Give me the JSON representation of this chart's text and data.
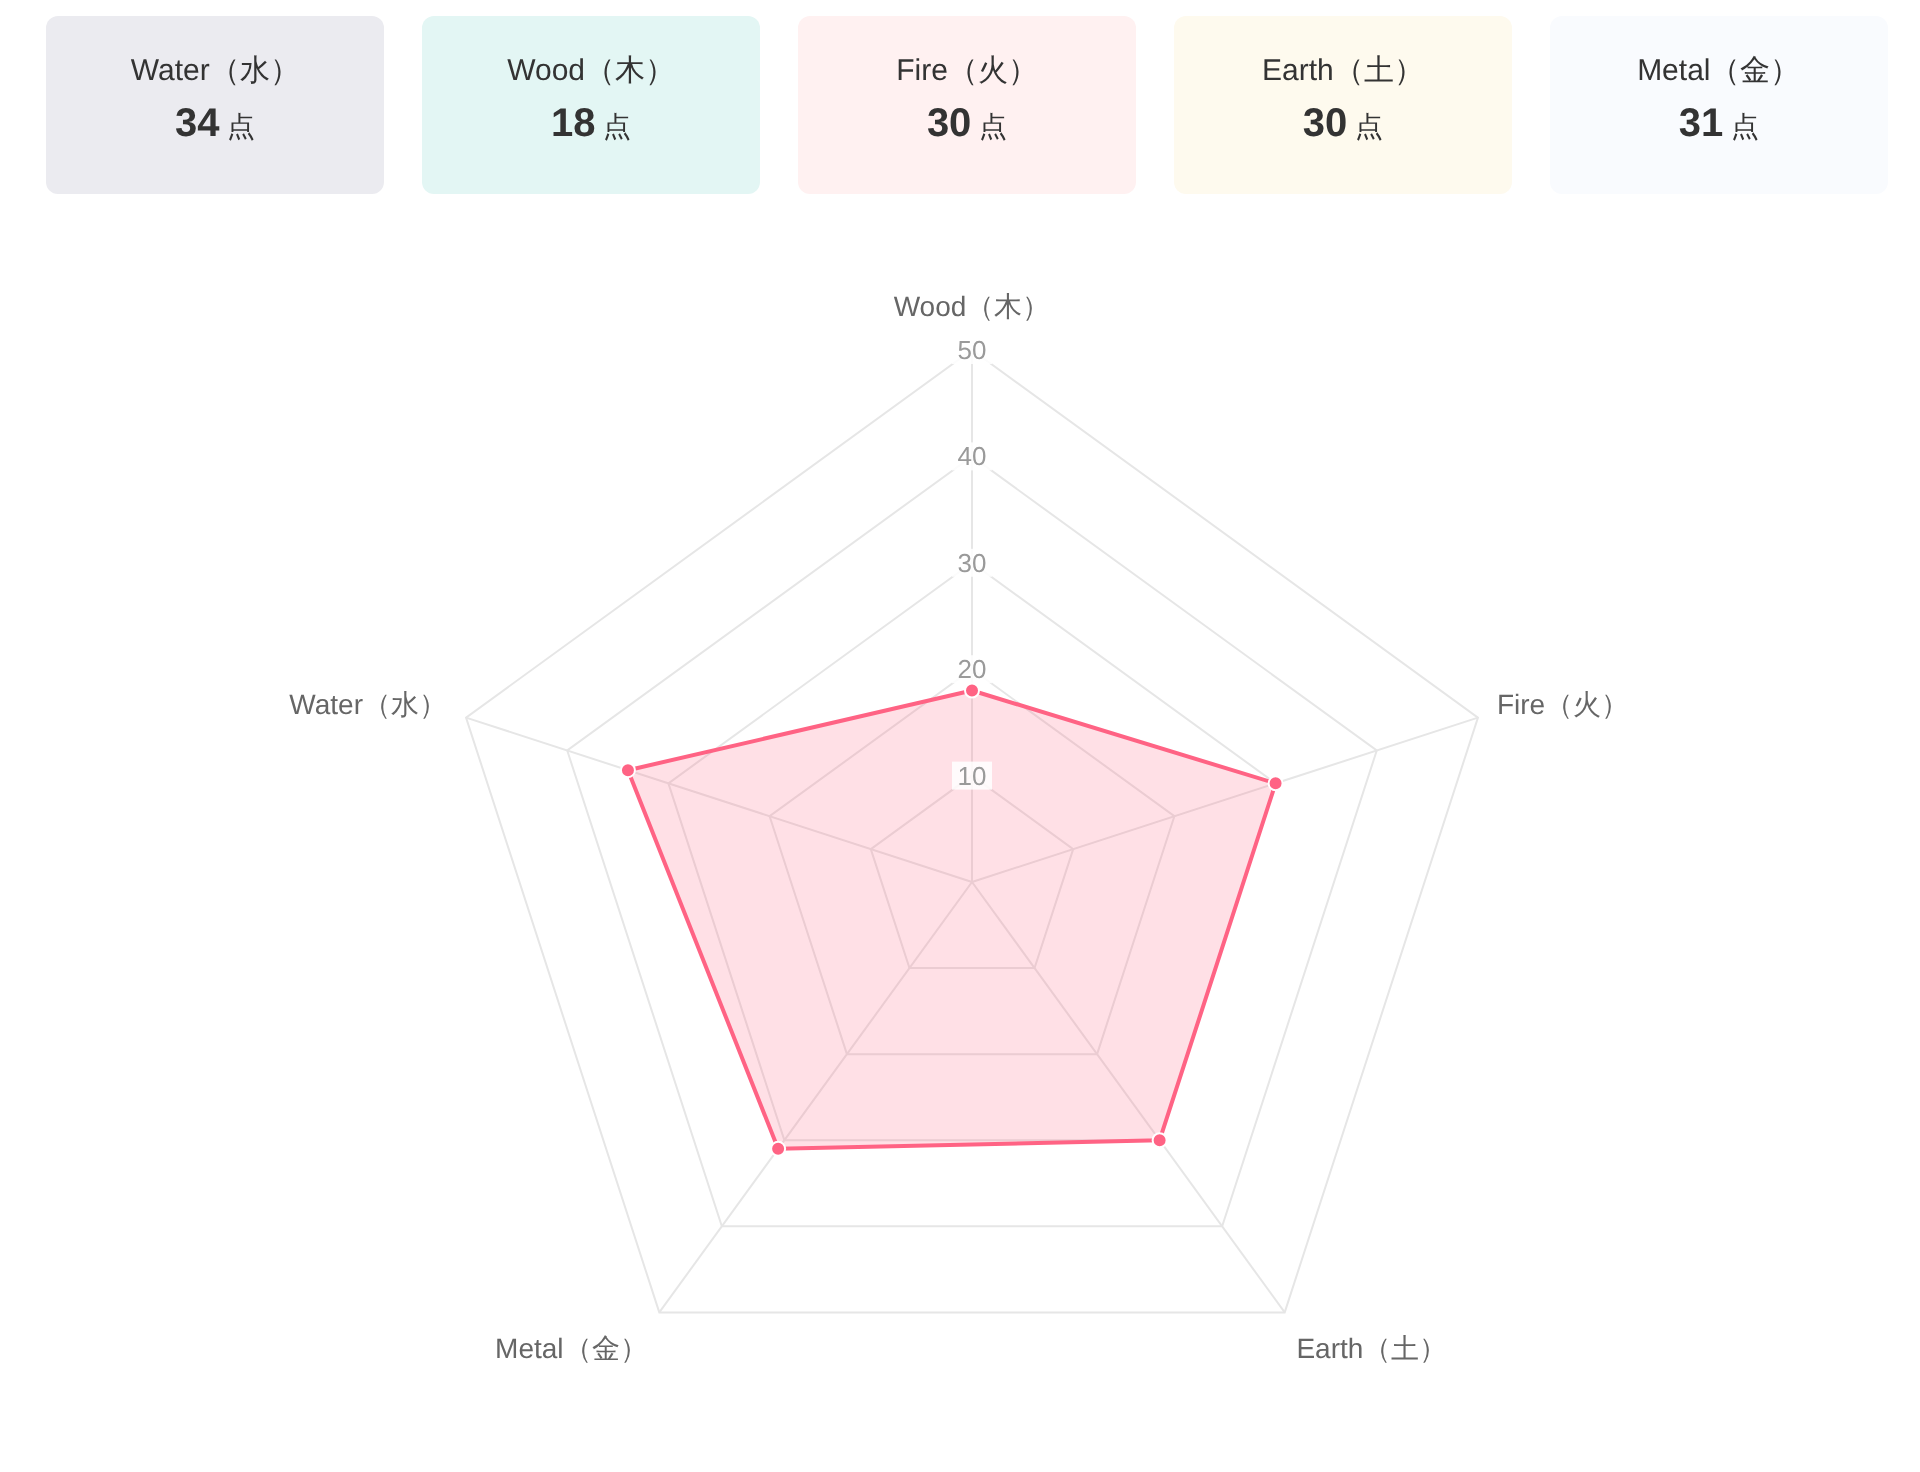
{
  "chart_data": [
    {
      "type": "other",
      "categories": [
        "Water（水）",
        "Wood（木）",
        "Fire（火）",
        "Earth（土）",
        "Metal（金）"
      ],
      "value_labels": [
        "34 点",
        "18 点",
        "30 点",
        "30 点",
        "31 点"
      ],
      "colors": [
        "#ebebf0",
        "#e3f6f4",
        "#fff1f1",
        "#fefaee",
        "#f9fbfe"
      ]
    },
    {
      "type": "radar",
      "categories": [
        "Wood（木）",
        "Fire（火）",
        "Earth（土）",
        "Metal（金）",
        "Water（水）"
      ],
      "series": [
        {
          "color": "#ff6384",
          "values": [
            18,
            30,
            30,
            31,
            34
          ]
        }
      ],
      "ylim": [
        0,
        50
      ],
      "yticks": [
        10,
        20,
        30,
        40,
        50
      ],
      "grid": true,
      "marker": "circle"
    }
  ]
}
